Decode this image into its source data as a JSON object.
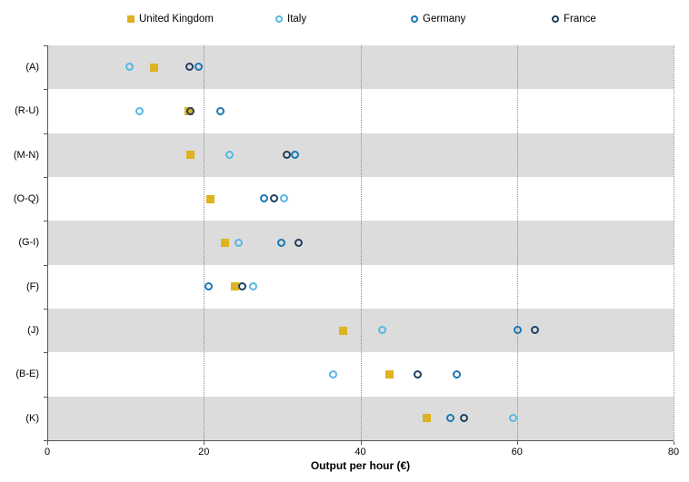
{
  "chart_data": {
    "type": "scatter",
    "subtype": "horizontal-dot-plot",
    "title": "",
    "xlabel": "Output per hour (€)",
    "ylabel": "",
    "xlim": [
      0,
      80
    ],
    "xticks": [
      0,
      20,
      40,
      60,
      80
    ],
    "grid": "vertical-dotted",
    "legend_position": "top",
    "categories": [
      "(A)",
      "(R-U)",
      "(M-N)",
      "(O-Q)",
      "(G-I)",
      "(F)",
      "(J)",
      "(B-E)",
      "(K)"
    ],
    "series": [
      {
        "name": "United Kingdom",
        "marker": "square",
        "color": "#DDB320",
        "values": [
          13.6,
          18.0,
          18.3,
          20.8,
          22.7,
          24.0,
          37.8,
          43.7,
          48.5
        ]
      },
      {
        "name": "Italy",
        "marker": "open-circle",
        "color": "#55B8E6",
        "values": [
          10.6,
          11.8,
          23.3,
          30.3,
          24.5,
          26.4,
          42.9,
          36.6,
          59.6
        ]
      },
      {
        "name": "Germany",
        "marker": "open-circle",
        "color": "#1B77B5",
        "values": [
          19.4,
          22.2,
          31.7,
          27.8,
          29.9,
          20.7,
          60.1,
          52.4,
          51.5
        ]
      },
      {
        "name": "France",
        "marker": "open-circle",
        "color": "#1F4061",
        "values": [
          18.2,
          18.4,
          30.6,
          29.0,
          32.2,
          25.0,
          62.3,
          47.4,
          53.3
        ]
      }
    ],
    "band_colors": [
      "#DCDCDC",
      "#FFFFFF"
    ],
    "axis_color": "#595959",
    "gridline_color": "#8C8C8C"
  },
  "layout_note": "alternating horizontal category bands, open-circle markers, filled square for UK"
}
